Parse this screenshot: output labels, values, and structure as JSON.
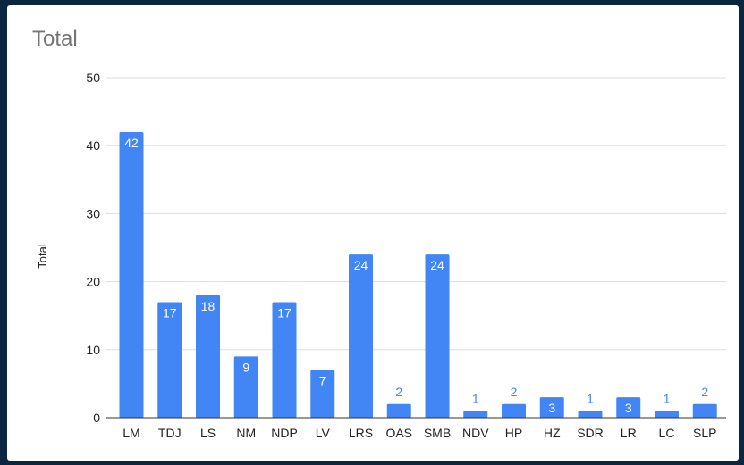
{
  "chart_data": {
    "type": "bar",
    "title": "Total",
    "xlabel": "",
    "ylabel": "Total",
    "ylim": [
      0,
      50
    ],
    "yticks": [
      "0",
      "10",
      "20",
      "30",
      "40",
      "50"
    ],
    "grid": true,
    "legend": "none",
    "categories": [
      "LM",
      "TDJ",
      "LS",
      "NM",
      "NDP",
      "LV",
      "LRS",
      "OAS",
      "SMB",
      "NDV",
      "HP",
      "HZ",
      "SDR",
      "LR",
      "LC",
      "SLP"
    ],
    "values": [
      42,
      17,
      18,
      9,
      17,
      7,
      24,
      2,
      24,
      1,
      2,
      3,
      1,
      3,
      1,
      2
    ],
    "bar_color": "#4285f4",
    "label_inside_color": "#ffffff",
    "label_outside_color": "#4285f4"
  }
}
